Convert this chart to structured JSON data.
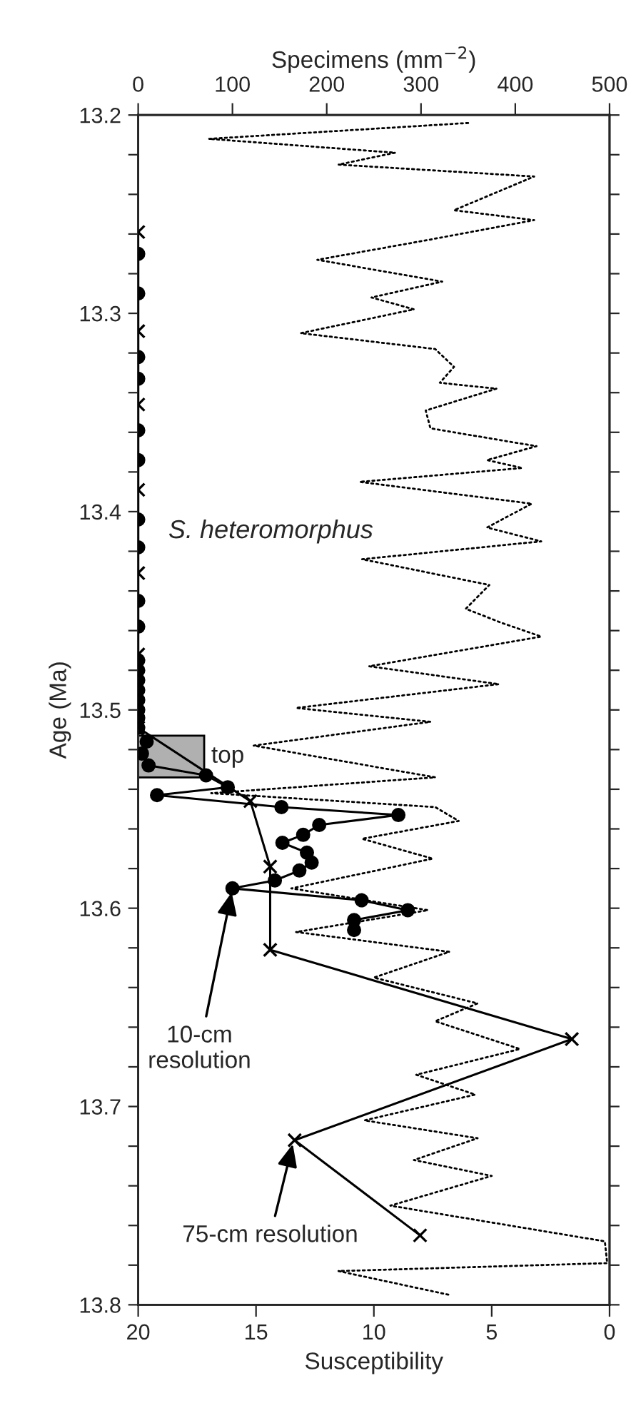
{
  "chart_data": {
    "type": "line",
    "orientation": "horizontal",
    "xlabel": "Susceptibility",
    "x2label": "Specimens (mm$^{−2}$)",
    "ylabel": "Age (Ma)",
    "xlim": [
      20,
      0
    ],
    "xticks": [
      20,
      15,
      10,
      5,
      0
    ],
    "x2lim": [
      0,
      500
    ],
    "x2ticks": [
      0,
      100,
      200,
      300,
      400,
      500
    ],
    "ylim": [
      13.8,
      13.2
    ],
    "yticks": [
      13.2,
      {
        "value": 13.22,
        "label": null
      },
      {
        "value": 13.24,
        "label": null
      },
      {
        "value": 13.26,
        "label": null
      },
      {
        "value": 13.28,
        "label": null
      },
      13.3,
      {
        "value": 13.32,
        "label": null
      },
      {
        "value": 13.34,
        "label": null
      },
      {
        "value": 13.36,
        "label": null
      },
      {
        "value": 13.38,
        "label": null
      },
      13.4,
      {
        "value": 13.42,
        "label": null
      },
      {
        "value": 13.44,
        "label": null
      },
      {
        "value": 13.46,
        "label": null
      },
      {
        "value": 13.48,
        "label": null
      },
      13.5,
      {
        "value": 13.52,
        "label": null
      },
      {
        "value": 13.54,
        "label": null
      },
      {
        "value": 13.56,
        "label": null
      },
      {
        "value": 13.58,
        "label": null
      },
      13.6,
      {
        "value": 13.62,
        "label": null
      },
      {
        "value": 13.64,
        "label": null
      },
      {
        "value": 13.66,
        "label": null
      },
      {
        "value": 13.68,
        "label": null
      },
      13.7,
      {
        "value": 13.72,
        "label": null
      },
      {
        "value": 13.74,
        "label": null
      },
      {
        "value": 13.76,
        "label": null
      },
      {
        "value": 13.78,
        "label": null
      },
      13.8
    ],
    "grid": false,
    "series": [
      {
        "color": "#000000",
        "marker": "none",
        "line_style": "dotted",
        "x": [
          13.204,
          13.212,
          13.219,
          13.225,
          13.231,
          13.248,
          13.253,
          13.263,
          13.273,
          13.284,
          13.292,
          13.298,
          13.31,
          13.318,
          13.327,
          13.335,
          13.338,
          13.349,
          13.358,
          13.367,
          13.374,
          13.378,
          13.385,
          13.396,
          13.408,
          13.415,
          13.424,
          13.437,
          13.449,
          13.456,
          13.463,
          13.478,
          13.487,
          13.499,
          13.506,
          13.518,
          13.534,
          13.542,
          13.549,
          13.556,
          13.565,
          13.575,
          13.59,
          13.601,
          13.612,
          13.622,
          13.635,
          13.648,
          13.657,
          13.671,
          13.684,
          13.694,
          13.707,
          13.716,
          13.727,
          13.735,
          13.75,
          13.768,
          13.779,
          13.783,
          13.795
        ],
        "values": [
          6.0,
          17.0,
          9.1,
          11.5,
          3.2,
          6.6,
          3.2,
          7.7,
          12.4,
          7.1,
          10.1,
          8.3,
          13.1,
          7.4,
          6.6,
          7.2,
          4.8,
          7.8,
          7.6,
          3.1,
          5.2,
          3.7,
          10.6,
          3.3,
          5.2,
          2.9,
          10.5,
          5.1,
          6.1,
          4.6,
          2.9,
          10.2,
          4.7,
          13.3,
          7.6,
          15.1,
          7.4,
          16.9,
          7.4,
          6.4,
          10.5,
          7.5,
          13.5,
          7.7,
          13.3,
          6.8,
          10.0,
          5.6,
          7.4,
          3.8,
          8.2,
          5.7,
          10.4,
          5.6,
          8.3,
          5.0,
          9.3,
          0.2,
          0.1,
          11.5,
          6.8
        ]
      },
      {
        "color": "#000000",
        "axis": "x2",
        "marker": "circle",
        "line_style": "solid",
        "x": [
          13.27,
          13.29,
          13.322,
          13.333,
          13.359,
          13.374,
          13.404,
          13.418,
          13.445,
          13.458,
          13.475,
          13.48,
          13.485,
          13.49,
          13.495,
          13.5,
          13.504,
          13.509,
          13.516,
          13.522,
          13.528,
          13.533,
          13.539,
          13.543,
          13.549,
          13.553,
          13.558,
          13.563,
          13.567,
          13.572,
          13.577,
          13.581,
          13.586,
          13.59,
          13.596,
          13.601,
          13.606,
          13.611
        ],
        "values": [
          0,
          0,
          0,
          0,
          0,
          0,
          0,
          0,
          0,
          0,
          0,
          0,
          0,
          0,
          0,
          0,
          0,
          0,
          9,
          4,
          11,
          72,
          95,
          20,
          152,
          276,
          192,
          175,
          153,
          179,
          184,
          171,
          145,
          100,
          237,
          286,
          229,
          229
        ]
      },
      {
        "color": "#000000",
        "axis": "x2",
        "marker": "cross",
        "line_style": "solid",
        "x": [
          13.259,
          13.309,
          13.346,
          13.389,
          13.431,
          13.472,
          13.509,
          13.546,
          13.579,
          13.621,
          13.666,
          13.717,
          13.765
        ],
        "values": [
          0,
          0,
          0,
          0,
          0,
          0,
          0,
          119,
          140,
          140,
          460,
          166,
          299
        ]
      }
    ],
    "bands": [
      {
        "axis": "y",
        "from": 13.513,
        "to": 13.534,
        "label": "top",
        "color": "#b0b0b0"
      }
    ],
    "annotations": [
      "S. heteromorphus",
      {
        "text": "10-cm\nresolution",
        "x": 16.0,
        "y": 13.59
      },
      {
        "text": "75-cm resolution",
        "x": 13.4,
        "y": 13.717
      }
    ]
  }
}
